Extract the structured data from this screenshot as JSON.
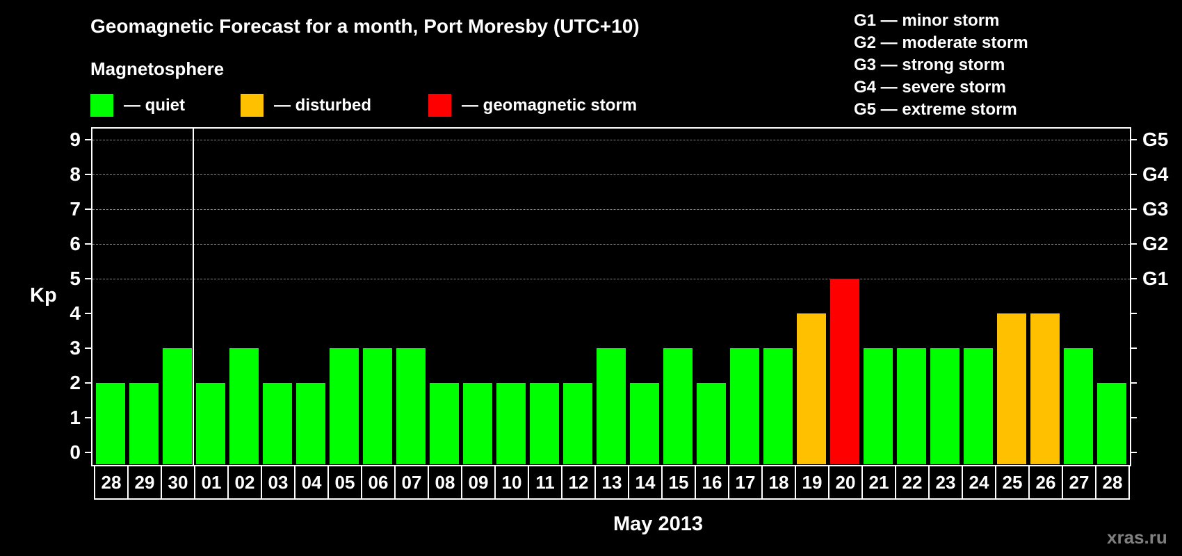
{
  "header": {
    "title": "Geomagnetic Forecast for a month, Port Moresby (UTC+10)",
    "subtitle": "Magnetosphere"
  },
  "legend": [
    {
      "label": "— quiet",
      "color": "#00FF00"
    },
    {
      "label": "— disturbed",
      "color": "#FFC000"
    },
    {
      "label": "— geomagnetic storm",
      "color": "#FF0000"
    }
  ],
  "g_legend": [
    "G1 — minor storm",
    "G2 — moderate storm",
    "G3 — strong storm",
    "G4 — severe storm",
    "G5 — extreme storm"
  ],
  "axis": {
    "y_label": "Kp",
    "y_ticks": [
      "0",
      "1",
      "2",
      "3",
      "4",
      "5",
      "6",
      "7",
      "8",
      "9"
    ],
    "right_ticks": [
      {
        "value": 5,
        "label": "G1"
      },
      {
        "value": 6,
        "label": "G2"
      },
      {
        "value": 7,
        "label": "G3"
      },
      {
        "value": 8,
        "label": "G4"
      },
      {
        "value": 9,
        "label": "G5"
      }
    ],
    "x_label": "May 2013"
  },
  "credit": "xras.ru",
  "colors": {
    "quiet": "#00FF00",
    "disturbed": "#FFC000",
    "storm": "#FF0000",
    "grid": "#8A8A8A",
    "background": "#000000",
    "credit": "#808080"
  },
  "chart_data": {
    "type": "bar",
    "title": "Geomagnetic Forecast for a month, Port Moresby (UTC+10)",
    "subtitle": "Magnetosphere",
    "xlabel": "May 2013",
    "ylabel": "Kp",
    "ylim": [
      0,
      9
    ],
    "grid": "dashed horizontal lines at Kp 5-9",
    "legend_position": "top",
    "month_separator_after_index": 2,
    "categories": [
      "28",
      "29",
      "30",
      "01",
      "02",
      "03",
      "04",
      "05",
      "06",
      "07",
      "08",
      "09",
      "10",
      "11",
      "12",
      "13",
      "14",
      "15",
      "16",
      "17",
      "18",
      "19",
      "20",
      "21",
      "22",
      "23",
      "24",
      "25",
      "26",
      "27",
      "28"
    ],
    "values": [
      2,
      2,
      3,
      2,
      3,
      2,
      2,
      3,
      3,
      3,
      2,
      2,
      2,
      2,
      2,
      3,
      2,
      3,
      2,
      3,
      3,
      4,
      5,
      3,
      3,
      3,
      3,
      4,
      4,
      3,
      2
    ],
    "status": [
      "quiet",
      "quiet",
      "quiet",
      "quiet",
      "quiet",
      "quiet",
      "quiet",
      "quiet",
      "quiet",
      "quiet",
      "quiet",
      "quiet",
      "quiet",
      "quiet",
      "quiet",
      "quiet",
      "quiet",
      "quiet",
      "quiet",
      "quiet",
      "quiet",
      "disturbed",
      "storm",
      "quiet",
      "quiet",
      "quiet",
      "quiet",
      "disturbed",
      "disturbed",
      "quiet",
      "quiet"
    ],
    "right_axis": {
      "5": "G1",
      "6": "G2",
      "7": "G3",
      "8": "G4",
      "9": "G5"
    }
  }
}
